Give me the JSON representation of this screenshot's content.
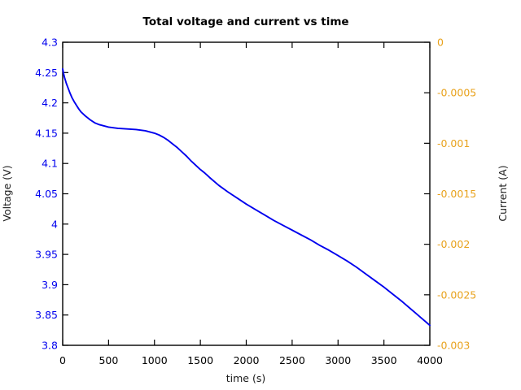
{
  "title": "Total voltage and current vs time",
  "chart_data": {
    "type": "line",
    "title": "Total voltage and current vs time",
    "xlabel": "time (s)",
    "ylabel_left": "Voltage (V)",
    "ylabel_right": "Current (A)",
    "x_range": [
      0,
      4000
    ],
    "y_left_range": [
      3.8,
      4.3
    ],
    "y_right_range": [
      -0.003,
      0
    ],
    "grid": false,
    "legend": "none",
    "x_ticks": [
      {
        "value": 0,
        "label": "0"
      },
      {
        "value": 500,
        "label": "500"
      },
      {
        "value": 1000,
        "label": "1000"
      },
      {
        "value": 1500,
        "label": "1500"
      },
      {
        "value": 2000,
        "label": "2000"
      },
      {
        "value": 2500,
        "label": "2500"
      },
      {
        "value": 3000,
        "label": "3000"
      },
      {
        "value": 3500,
        "label": "3500"
      },
      {
        "value": 4000,
        "label": "4000"
      }
    ],
    "y_left_ticks": [
      {
        "value": 4.3,
        "label": "4.3"
      },
      {
        "value": 4.25,
        "label": "4.25"
      },
      {
        "value": 4.2,
        "label": "4.2"
      },
      {
        "value": 4.15,
        "label": "4.15"
      },
      {
        "value": 4.1,
        "label": "4.1"
      },
      {
        "value": 4.05,
        "label": "4.05"
      },
      {
        "value": 4.0,
        "label": "4"
      },
      {
        "value": 3.95,
        "label": "3.95"
      },
      {
        "value": 3.9,
        "label": "3.9"
      },
      {
        "value": 3.85,
        "label": "3.85"
      },
      {
        "value": 3.8,
        "label": "3.8"
      }
    ],
    "y_right_ticks": [
      {
        "value": 0,
        "label": "0"
      },
      {
        "value": -0.0005,
        "label": "-0.0005"
      },
      {
        "value": -0.001,
        "label": "-0.001"
      },
      {
        "value": -0.0015,
        "label": "-0.0015"
      },
      {
        "value": -0.002,
        "label": "-0.002"
      },
      {
        "value": -0.0025,
        "label": "-0.0025"
      },
      {
        "value": -0.003,
        "label": "-0.003"
      }
    ],
    "colors": {
      "voltage": "#0000ee",
      "left_tick_labels": "#0000ee",
      "right_tick_labels": "#e8a21c",
      "axis": "#000000",
      "x_tick_labels": "#000000"
    },
    "series": [
      {
        "name": "Total voltage",
        "axis": "left",
        "color": "#0000ee",
        "x": [
          0,
          10,
          20,
          30,
          40,
          60,
          80,
          100,
          125,
          150,
          175,
          200,
          250,
          300,
          350,
          400,
          450,
          500,
          600,
          700,
          800,
          900,
          1000,
          1050,
          1100,
          1150,
          1200,
          1250,
          1300,
          1350,
          1400,
          1450,
          1500,
          1550,
          1600,
          1700,
          1800,
          1900,
          2000,
          2100,
          2200,
          2300,
          2400,
          2500,
          2600,
          2700,
          2800,
          2900,
          3000,
          3100,
          3200,
          3300,
          3400,
          3500,
          3600,
          3700,
          3800,
          3900,
          4000
        ],
        "y": [
          4.256,
          4.248,
          4.242,
          4.237,
          4.232,
          4.224,
          4.216,
          4.209,
          4.202,
          4.196,
          4.19,
          4.185,
          4.178,
          4.172,
          4.167,
          4.164,
          4.162,
          4.16,
          4.158,
          4.157,
          4.156,
          4.154,
          4.15,
          4.147,
          4.143,
          4.138,
          4.132,
          4.126,
          4.119,
          4.112,
          4.104,
          4.097,
          4.09,
          4.084,
          4.077,
          4.064,
          4.053,
          4.043,
          4.033,
          4.024,
          4.015,
          4.006,
          3.998,
          3.99,
          3.982,
          3.974,
          3.965,
          3.957,
          3.948,
          3.939,
          3.929,
          3.918,
          3.907,
          3.896,
          3.884,
          3.872,
          3.859,
          3.846,
          3.833
        ]
      }
    ]
  }
}
